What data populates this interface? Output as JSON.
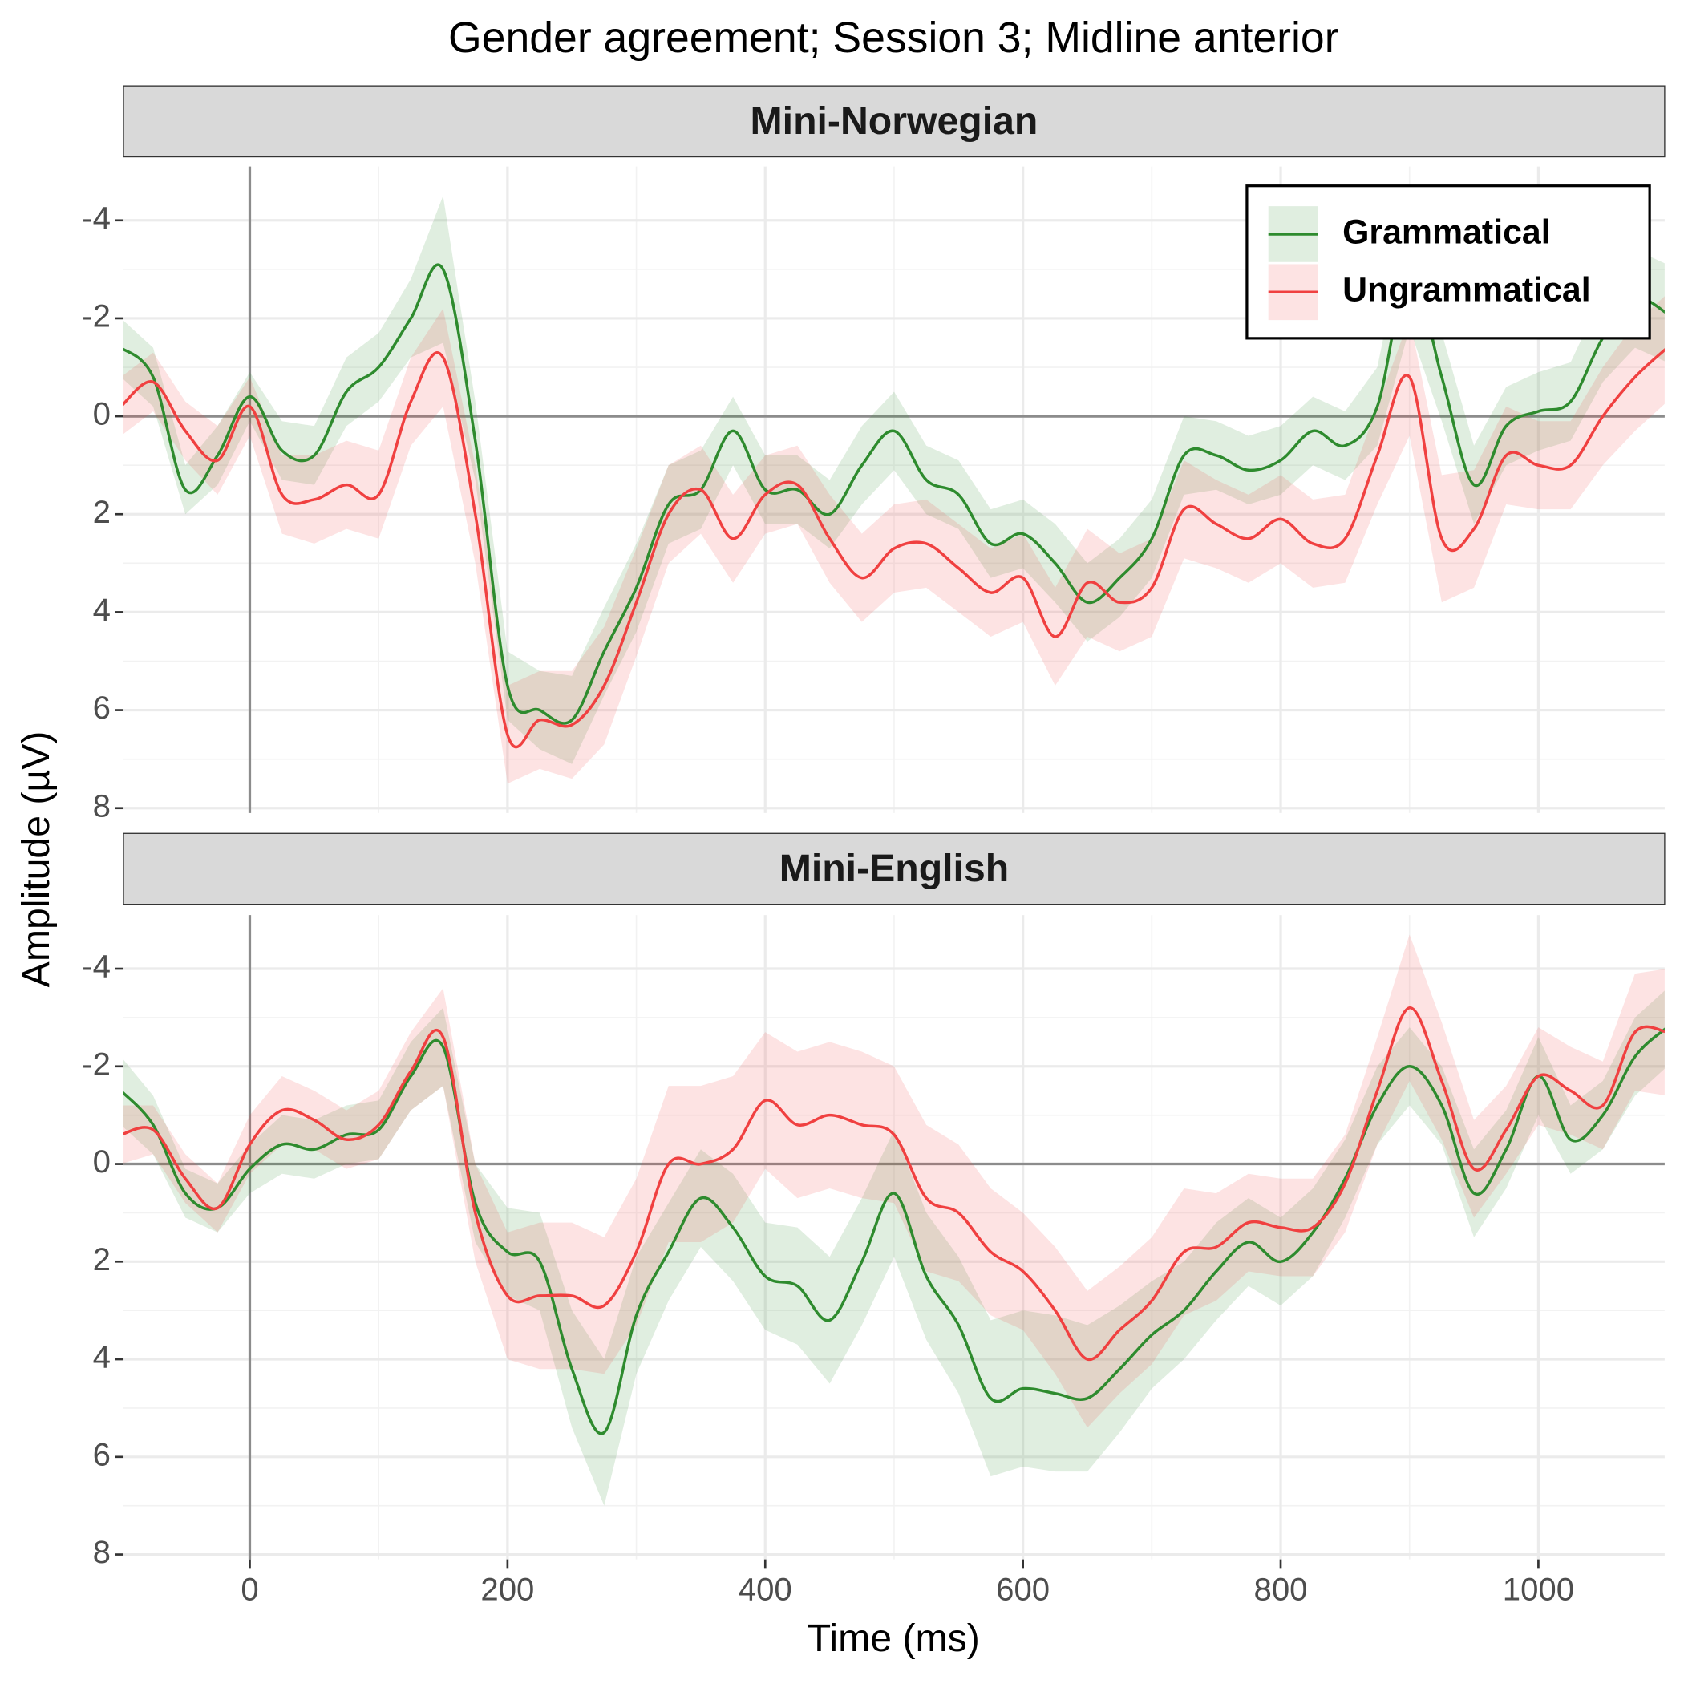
{
  "chart_data": {
    "type": "line",
    "title": "Gender agreement; Session 3; Midline anterior",
    "xlabel": "Time (ms)",
    "ylabel": "Amplitude (µV)",
    "panels": [
      "Mini-Norwegian",
      "Mini-English"
    ],
    "x": [
      -100,
      -75,
      -50,
      -25,
      0,
      25,
      50,
      75,
      100,
      125,
      150,
      175,
      200,
      225,
      250,
      275,
      300,
      325,
      350,
      375,
      400,
      425,
      450,
      475,
      500,
      525,
      550,
      575,
      600,
      625,
      650,
      675,
      700,
      725,
      750,
      775,
      800,
      825,
      850,
      875,
      900,
      925,
      950,
      975,
      1000,
      1025,
      1050,
      1075,
      1100
    ],
    "xlim": [
      -98,
      1098
    ],
    "xticks": [
      0,
      200,
      400,
      600,
      800,
      1000
    ],
    "ylim": [
      -5.1,
      8.1
    ],
    "yticks": [
      -4,
      -2,
      0,
      2,
      4,
      6,
      8
    ],
    "y_reversed": true,
    "grid": true,
    "legend_position": "top-right",
    "series": [
      {
        "name": "Grammatical",
        "color": "#2e8b2e",
        "values": [
          [
            -1.4,
            -0.8,
            1.5,
            0.8,
            -0.4,
            0.7,
            0.8,
            -0.5,
            -1.0,
            -2.0,
            -3.0,
            0.5,
            5.5,
            6.0,
            6.2,
            4.8,
            3.5,
            1.8,
            1.5,
            0.3,
            1.5,
            1.5,
            2.0,
            1.0,
            0.3,
            1.3,
            1.6,
            2.6,
            2.4,
            3.0,
            3.8,
            3.3,
            2.5,
            0.8,
            0.8,
            1.1,
            0.9,
            0.3,
            0.6,
            -0.2,
            -3.0,
            -0.8,
            1.4,
            0.2,
            -0.1,
            -0.3,
            -1.6,
            -2.4,
            -2.1
          ],
          [
            -1.5,
            -0.8,
            0.6,
            0.9,
            0.1,
            -0.4,
            -0.3,
            -0.6,
            -0.7,
            -1.8,
            -2.4,
            0.8,
            1.8,
            2.0,
            4.2,
            5.5,
            3.1,
            1.8,
            0.7,
            1.3,
            2.3,
            2.5,
            3.2,
            2.0,
            0.6,
            2.3,
            3.3,
            4.8,
            4.6,
            4.7,
            4.8,
            4.2,
            3.5,
            3.0,
            2.2,
            1.6,
            2.0,
            1.4,
            0.3,
            -1.2,
            -2.0,
            -1.2,
            0.6,
            -0.3,
            -1.8,
            -0.5,
            -1.0,
            -2.2,
            -2.8
          ]
        ],
        "errors": [
          [
            0.6,
            0.6,
            0.5,
            0.6,
            0.5,
            0.6,
            0.6,
            0.7,
            0.7,
            0.8,
            1.5,
            0.8,
            0.7,
            0.8,
            0.9,
            0.9,
            0.9,
            0.8,
            0.8,
            0.7,
            0.7,
            0.7,
            0.7,
            0.8,
            0.8,
            0.7,
            0.7,
            0.7,
            0.7,
            0.8,
            0.8,
            0.8,
            0.8,
            0.8,
            0.7,
            0.7,
            0.7,
            0.7,
            0.7,
            0.8,
            1.2,
            0.9,
            0.8,
            0.8,
            0.8,
            0.8,
            0.9,
            1.0,
            1.0
          ],
          [
            0.7,
            0.6,
            0.5,
            0.5,
            0.5,
            0.6,
            0.6,
            0.6,
            0.6,
            0.7,
            0.8,
            0.8,
            0.9,
            1.0,
            1.2,
            1.5,
            1.2,
            1.0,
            1.0,
            1.1,
            1.1,
            1.2,
            1.3,
            1.3,
            1.3,
            1.3,
            1.4,
            1.6,
            1.6,
            1.6,
            1.5,
            1.3,
            1.1,
            1.0,
            1.0,
            0.9,
            0.9,
            0.9,
            0.8,
            0.8,
            0.8,
            0.8,
            0.9,
            0.8,
            0.8,
            0.7,
            0.7,
            0.8,
            0.8
          ]
        ]
      },
      {
        "name": "Ungrammatical",
        "color": "#f04040",
        "values": [
          [
            -0.2,
            -0.7,
            0.3,
            0.9,
            -0.2,
            1.6,
            1.7,
            1.4,
            1.6,
            -0.3,
            -1.2,
            2.0,
            6.5,
            6.2,
            6.3,
            5.5,
            3.8,
            2.0,
            1.5,
            2.5,
            1.6,
            1.4,
            2.5,
            3.3,
            2.7,
            2.6,
            3.1,
            3.6,
            3.3,
            4.5,
            3.4,
            3.8,
            3.5,
            1.9,
            2.2,
            2.5,
            2.1,
            2.6,
            2.5,
            0.8,
            -0.8,
            2.5,
            2.3,
            0.8,
            1.0,
            1.0,
            0.0,
            -0.8,
            -1.4
          ],
          [
            -0.6,
            -0.7,
            0.3,
            0.9,
            -0.4,
            -1.1,
            -0.9,
            -0.5,
            -0.8,
            -1.9,
            -2.6,
            1.0,
            2.7,
            2.7,
            2.7,
            2.9,
            1.8,
            0.0,
            0.0,
            -0.3,
            -1.3,
            -0.8,
            -1.0,
            -0.8,
            -0.6,
            0.7,
            1.0,
            1.8,
            2.2,
            3.0,
            4.0,
            3.4,
            2.8,
            1.8,
            1.7,
            1.2,
            1.3,
            1.3,
            0.4,
            -1.5,
            -3.2,
            -1.7,
            0.1,
            -0.7,
            -1.8,
            -1.5,
            -1.2,
            -2.7,
            -2.7
          ]
        ],
        "errors": [
          [
            0.6,
            0.6,
            0.6,
            0.7,
            0.6,
            0.8,
            0.9,
            0.9,
            0.9,
            0.9,
            1.0,
            1.0,
            1.0,
            1.0,
            1.1,
            1.2,
            1.1,
            1.0,
            0.9,
            0.9,
            0.8,
            0.8,
            0.9,
            0.9,
            0.9,
            0.9,
            0.9,
            0.9,
            0.9,
            1.0,
            1.1,
            1.0,
            1.0,
            1.0,
            0.9,
            0.9,
            0.9,
            0.9,
            0.9,
            1.0,
            1.2,
            1.3,
            1.2,
            1.0,
            0.9,
            0.9,
            1.0,
            1.1,
            1.1
          ],
          [
            0.6,
            0.5,
            0.5,
            0.5,
            0.6,
            0.7,
            0.6,
            0.6,
            0.7,
            0.8,
            1.0,
            1.0,
            1.3,
            1.5,
            1.5,
            1.4,
            1.5,
            1.6,
            1.6,
            1.5,
            1.4,
            1.5,
            1.5,
            1.5,
            1.4,
            1.5,
            1.4,
            1.3,
            1.2,
            1.3,
            1.4,
            1.3,
            1.3,
            1.3,
            1.1,
            1.0,
            1.0,
            1.0,
            1.0,
            1.1,
            1.5,
            1.2,
            1.0,
            0.9,
            1.0,
            0.9,
            0.9,
            1.2,
            1.3
          ]
        ]
      }
    ]
  }
}
